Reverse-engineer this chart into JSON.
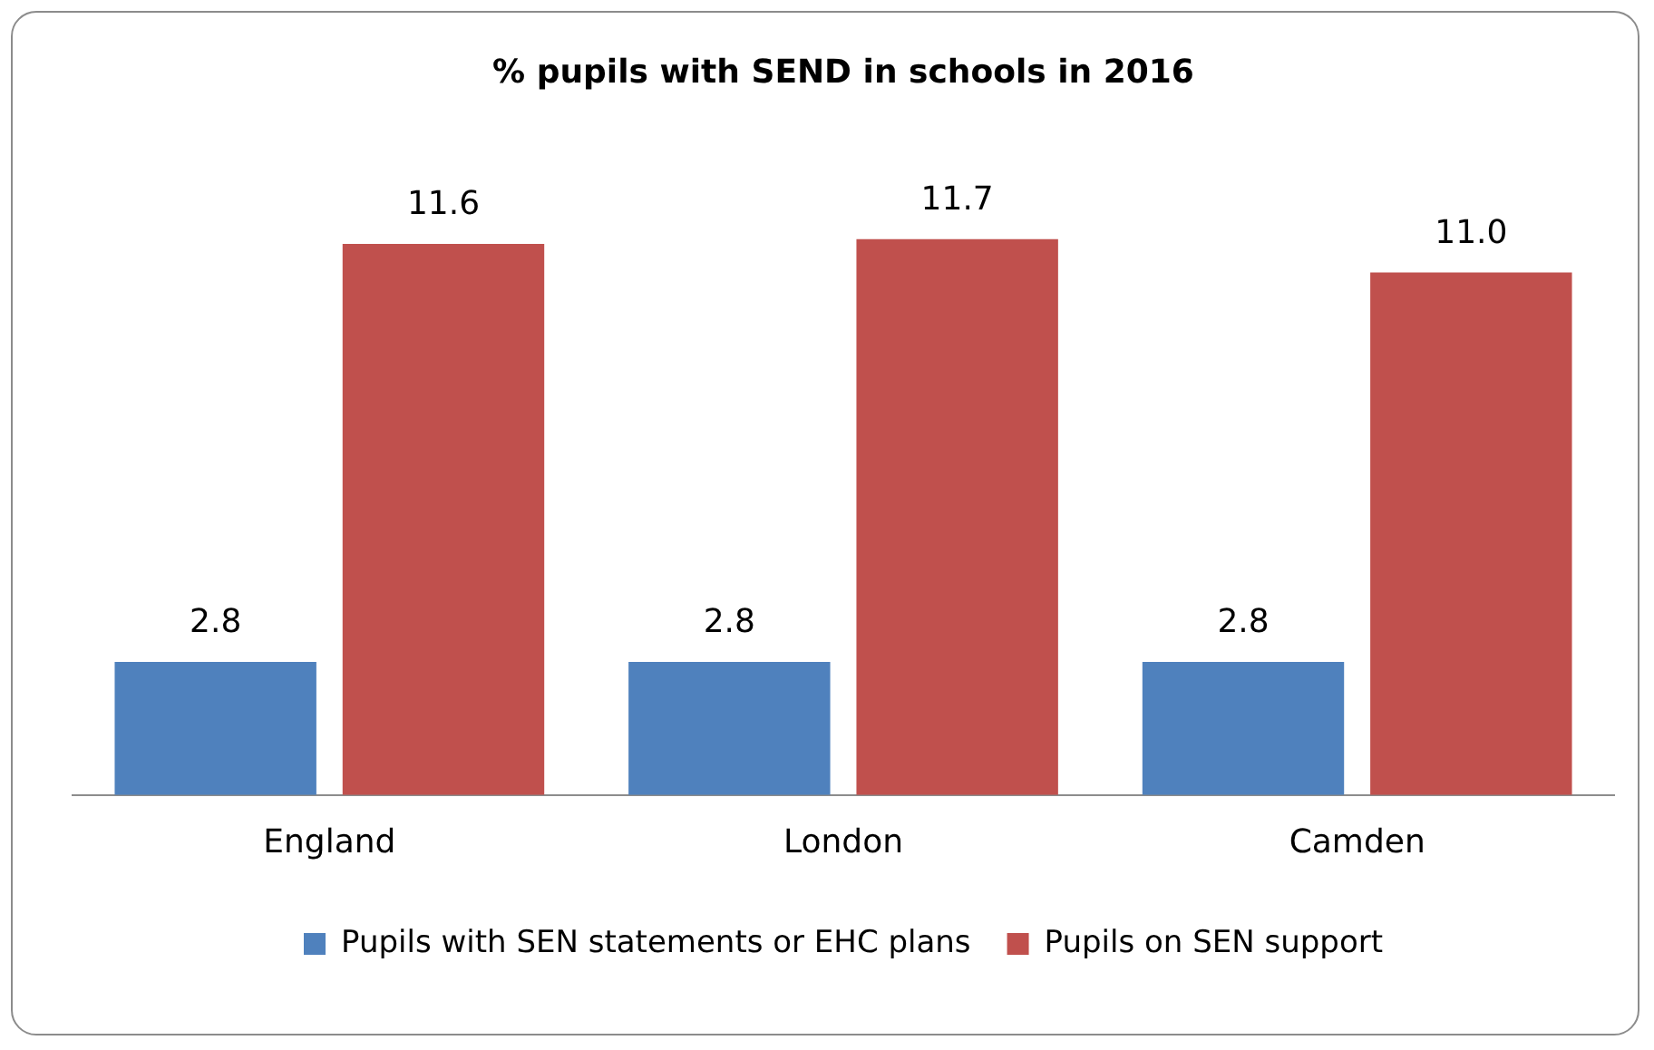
{
  "chart_data": {
    "type": "bar",
    "title": "% pupils with SEND in schools in 2016",
    "categories": [
      "England",
      "London",
      "Camden"
    ],
    "series": [
      {
        "name": "Pupils with SEN statements or EHC plans",
        "color": "#4f81bd",
        "values": [
          2.8,
          2.8,
          2.8
        ],
        "value_labels": [
          "2.8",
          "2.8",
          "2.8"
        ]
      },
      {
        "name": "Pupils on SEN support",
        "color": "#c0504d",
        "values": [
          11.6,
          11.7,
          11.0
        ],
        "value_labels": [
          "11.6",
          "11.7",
          "11.0"
        ]
      }
    ],
    "grid": false,
    "legend": "bottom"
  }
}
